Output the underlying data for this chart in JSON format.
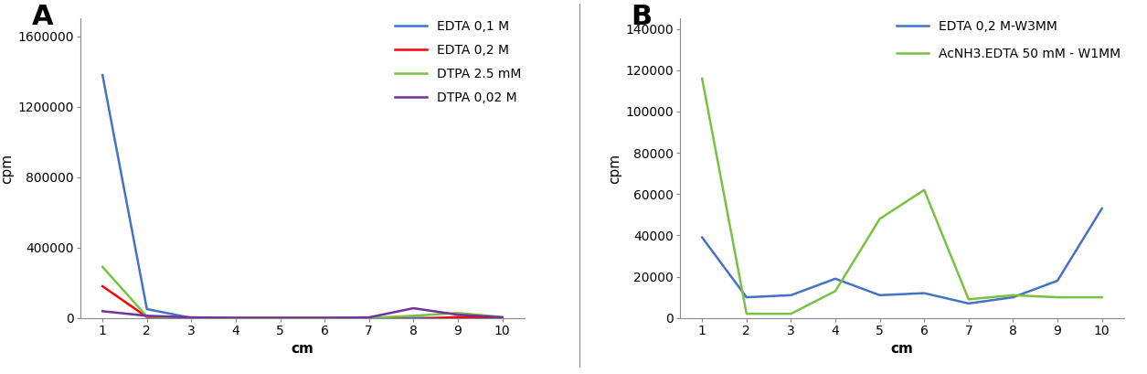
{
  "panel_A": {
    "x": [
      1,
      2,
      3,
      4,
      5,
      6,
      7,
      8,
      9,
      10
    ],
    "series": [
      {
        "label": "EDTA 0,1 M",
        "color": "#4472C4",
        "values": [
          1380000,
          50000,
          0,
          0,
          0,
          0,
          0,
          0,
          0,
          0
        ]
      },
      {
        "label": "EDTA 0,2 M",
        "color": "#FF0000",
        "values": [
          180000,
          5000,
          0,
          0,
          0,
          0,
          0,
          -8000,
          5000,
          0
        ]
      },
      {
        "label": "DTPA 2.5 mM",
        "color": "#7AC143",
        "values": [
          290000,
          8000,
          0,
          0,
          0,
          0,
          0,
          12000,
          28000,
          5000
        ]
      },
      {
        "label": "DTPA 0,02 M",
        "color": "#7030A0",
        "values": [
          38000,
          12000,
          3000,
          0,
          0,
          0,
          3000,
          55000,
          18000,
          3000
        ]
      }
    ],
    "ylabel": "cpm",
    "xlabel": "cm",
    "ylim": [
      0,
      1700000
    ],
    "yticks": [
      0,
      400000,
      800000,
      1200000,
      1600000
    ],
    "panel_label": "A"
  },
  "panel_B": {
    "x": [
      1,
      2,
      3,
      4,
      5,
      6,
      7,
      8,
      9,
      10
    ],
    "series": [
      {
        "label": "EDTA 0,2 M-W3MM",
        "color": "#4472C4",
        "values": [
          39000,
          10000,
          11000,
          19000,
          11000,
          12000,
          7000,
          10000,
          18000,
          53000
        ]
      },
      {
        "label": "AcNH3.EDTA 50 mM - W1MM",
        "color": "#7AC143",
        "values": [
          116000,
          2000,
          2000,
          13000,
          48000,
          62000,
          9000,
          11000,
          10000,
          10000
        ]
      }
    ],
    "ylabel": "cpm",
    "xlabel": "cm",
    "ylim": [
      0,
      145000
    ],
    "yticks": [
      0,
      20000,
      40000,
      60000,
      80000,
      100000,
      120000,
      140000
    ],
    "panel_label": "B"
  },
  "background_color": "#FFFFFF",
  "spine_color": "#888888",
  "separator_color": "#888888"
}
